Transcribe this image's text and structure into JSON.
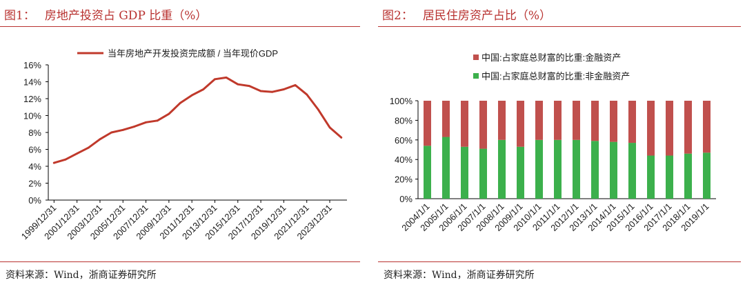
{
  "left": {
    "figure_label": "图1：",
    "title": "房地产投资占 GDP 比重（%）",
    "source": "资料来源：Wind，浙商证券研究所"
  },
  "right": {
    "figure_label": "图2：",
    "title": "居民住房资产占比（%）",
    "source": "资料来源：Wind，浙商证券研究所"
  },
  "colors": {
    "accent": "#b8312f",
    "line": "#c0392b",
    "financial": "#c0504d",
    "nonfinancial": "#3cb04c"
  },
  "chart_data": [
    {
      "type": "line",
      "title": "房地产投资占 GDP 比重（%）",
      "legend": "当年房地产开发投资完成额 / 当年现价GDP",
      "legend_position": "top",
      "ylim": [
        0,
        16
      ],
      "yticks": [
        "0%",
        "2%",
        "4%",
        "6%",
        "8%",
        "10%",
        "12%",
        "14%",
        "16%"
      ],
      "x": [
        "1999/12/31",
        "2000/12/31",
        "2001/12/31",
        "2002/12/31",
        "2003/12/31",
        "2004/12/31",
        "2005/12/31",
        "2006/12/31",
        "2007/12/31",
        "2008/12/31",
        "2009/12/31",
        "2010/12/31",
        "2011/12/31",
        "2012/12/31",
        "2013/12/31",
        "2014/12/31",
        "2015/12/31",
        "2016/12/31",
        "2017/12/31",
        "2018/12/31",
        "2019/12/31",
        "2020/12/31",
        "2021/12/31",
        "2022/12/31",
        "2023/12/31",
        "2024/12/31"
      ],
      "xtick_labels": [
        "1999/12/31",
        "2001/12/31",
        "2003/12/31",
        "2005/12/31",
        "2007/12/31",
        "2009/12/31",
        "2011/12/31",
        "2013/12/31",
        "2015/12/31",
        "2017/12/31",
        "2019/12/31",
        "2021/12/31",
        "2023/12/31"
      ],
      "values": [
        4.4,
        4.8,
        5.5,
        6.2,
        7.2,
        8.0,
        8.3,
        8.7,
        9.2,
        9.4,
        10.2,
        11.5,
        12.4,
        13.1,
        14.3,
        14.5,
        13.7,
        13.5,
        12.9,
        12.8,
        13.1,
        13.6,
        12.5,
        10.7,
        8.6,
        7.4
      ]
    },
    {
      "type": "bar",
      "stacked": true,
      "title": "居民住房资产占比（%）",
      "legend_position": "top",
      "ylim": [
        0,
        100
      ],
      "yticks": [
        "0%",
        "20%",
        "40%",
        "60%",
        "80%",
        "100%"
      ],
      "categories": [
        "2004/1/1",
        "2005/1/1",
        "2006/1/1",
        "2007/1/1",
        "2008/1/1",
        "2009/1/1",
        "2010/1/1",
        "2011/1/1",
        "2012/1/1",
        "2013/1/1",
        "2014/1/1",
        "2015/1/1",
        "2016/1/1",
        "2017/1/1",
        "2018/1/1",
        "2019/1/1"
      ],
      "series": [
        {
          "name": "中国:占家庭总财富的比重:金融资产",
          "values": [
            46,
            37,
            47,
            49,
            40,
            47,
            40,
            40,
            40,
            41,
            42,
            43,
            56,
            56,
            54,
            53
          ]
        },
        {
          "name": "中国:占家庭总财富的比重:非金融资产",
          "values": [
            54,
            63,
            53,
            51,
            60,
            53,
            60,
            60,
            60,
            59,
            58,
            57,
            44,
            44,
            46,
            47
          ]
        }
      ]
    }
  ]
}
